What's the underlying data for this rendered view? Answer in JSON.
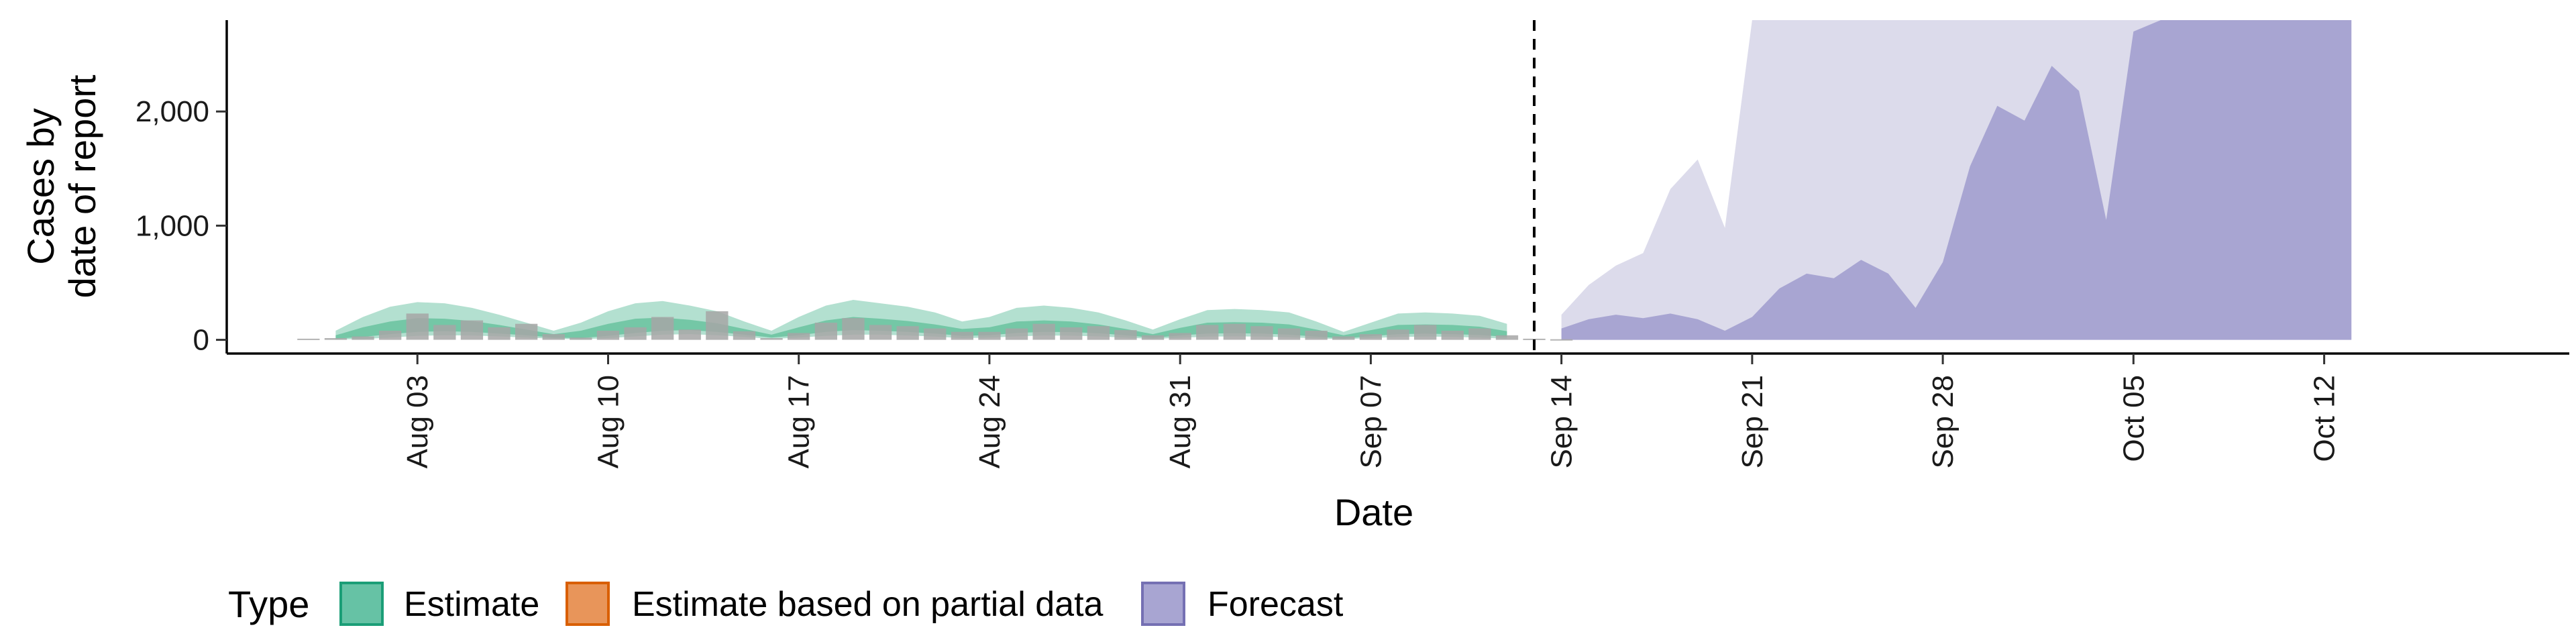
{
  "chart_data": {
    "type": "area",
    "xlabel": "Date",
    "ylabel_lines": [
      "Cases by",
      "date of report"
    ],
    "x_ticks": [
      "Aug 03",
      "Aug 10",
      "Aug 17",
      "Aug 24",
      "Aug 31",
      "Sep 07",
      "Sep 14",
      "Sep 21",
      "Sep 28",
      "Oct 05",
      "Oct 12"
    ],
    "y_ticks": [
      "0",
      "1,000",
      "2,000"
    ],
    "ylim": [
      -120,
      2800
    ],
    "x_range": [
      "2020-07-27",
      "2020-10-21"
    ],
    "forecast_start": "2020-09-13",
    "legend": {
      "title": "Type",
      "position": "bottom",
      "items": [
        {
          "label": "Estimate",
          "fill": "#66c2a5",
          "stroke": "#1b9e77"
        },
        {
          "label": "Estimate based on partial data",
          "fill": "#e8955a",
          "stroke": "#d95f02"
        },
        {
          "label": "Forecast",
          "fill": "#a8a5d2",
          "stroke": "#7570b3"
        }
      ]
    },
    "colors": {
      "estimate_outer": "#b3e0d0",
      "estimate_inner": "#74c7a6",
      "forecast_outer": "#dcdbeb",
      "forecast_inner": "#a8a5d2",
      "observed_bars": "#a6a6a6"
    },
    "estimate": {
      "dates": [
        "2020-07-31",
        "2020-08-01",
        "2020-08-02",
        "2020-08-03",
        "2020-08-04",
        "2020-08-05",
        "2020-08-06",
        "2020-08-07",
        "2020-08-08",
        "2020-08-09",
        "2020-08-10",
        "2020-08-11",
        "2020-08-12",
        "2020-08-13",
        "2020-08-14",
        "2020-08-15",
        "2020-08-16",
        "2020-08-17",
        "2020-08-18",
        "2020-08-19",
        "2020-08-20",
        "2020-08-21",
        "2020-08-22",
        "2020-08-23",
        "2020-08-24",
        "2020-08-25",
        "2020-08-26",
        "2020-08-27",
        "2020-08-28",
        "2020-08-29",
        "2020-08-30",
        "2020-08-31",
        "2020-09-01",
        "2020-09-02",
        "2020-09-03",
        "2020-09-04",
        "2020-09-05",
        "2020-09-06",
        "2020-09-07",
        "2020-09-08",
        "2020-09-09",
        "2020-09-10",
        "2020-09-11",
        "2020-09-12"
      ],
      "lower_outer": [
        2,
        8,
        20,
        35,
        40,
        38,
        30,
        20,
        10,
        5,
        15,
        30,
        45,
        50,
        40,
        25,
        8,
        20,
        35,
        45,
        45,
        38,
        28,
        15,
        20,
        30,
        38,
        36,
        30,
        20,
        8,
        18,
        28,
        30,
        28,
        22,
        12,
        5,
        15,
        25,
        28,
        26,
        20,
        10
      ],
      "upper_outer": [
        80,
        200,
        290,
        330,
        320,
        280,
        220,
        150,
        80,
        150,
        250,
        320,
        340,
        300,
        250,
        160,
        80,
        200,
        300,
        350,
        320,
        290,
        240,
        160,
        200,
        280,
        300,
        280,
        240,
        170,
        90,
        180,
        260,
        270,
        260,
        240,
        160,
        70,
        150,
        230,
        240,
        230,
        210,
        140
      ],
      "lower_inner": [
        10,
        25,
        50,
        70,
        75,
        70,
        55,
        40,
        20,
        15,
        35,
        60,
        80,
        85,
        70,
        45,
        20,
        40,
        70,
        85,
        80,
        70,
        55,
        35,
        40,
        60,
        70,
        68,
        58,
        40,
        18,
        38,
        55,
        58,
        55,
        45,
        28,
        12,
        32,
        50,
        54,
        50,
        42,
        25
      ],
      "upper_inner": [
        40,
        110,
        160,
        190,
        185,
        165,
        130,
        90,
        50,
        80,
        140,
        185,
        195,
        175,
        145,
        95,
        45,
        110,
        170,
        200,
        185,
        165,
        135,
        95,
        110,
        160,
        170,
        160,
        135,
        95,
        50,
        105,
        150,
        155,
        150,
        135,
        90,
        40,
        85,
        130,
        135,
        130,
        115,
        75
      ]
    },
    "observed": {
      "dates": [
        "2020-07-30",
        "2020-07-31",
        "2020-08-01",
        "2020-08-02",
        "2020-08-03",
        "2020-08-04",
        "2020-08-05",
        "2020-08-06",
        "2020-08-07",
        "2020-08-08",
        "2020-08-09",
        "2020-08-10",
        "2020-08-11",
        "2020-08-12",
        "2020-08-13",
        "2020-08-14",
        "2020-08-15",
        "2020-08-16",
        "2020-08-17",
        "2020-08-18",
        "2020-08-19",
        "2020-08-20",
        "2020-08-21",
        "2020-08-22",
        "2020-08-23",
        "2020-08-24",
        "2020-08-25",
        "2020-08-26",
        "2020-08-27",
        "2020-08-28",
        "2020-08-29",
        "2020-08-30",
        "2020-08-31",
        "2020-09-01",
        "2020-09-02",
        "2020-09-03",
        "2020-09-04",
        "2020-09-05",
        "2020-09-06",
        "2020-09-07",
        "2020-09-08",
        "2020-09-09",
        "2020-09-10",
        "2020-09-11",
        "2020-09-12",
        "2020-09-13",
        "2020-09-14"
      ],
      "values": [
        10,
        15,
        30,
        80,
        230,
        130,
        170,
        110,
        140,
        50,
        20,
        80,
        110,
        200,
        90,
        250,
        75,
        15,
        60,
        150,
        190,
        130,
        120,
        100,
        70,
        70,
        100,
        140,
        110,
        120,
        85,
        40,
        60,
        130,
        140,
        120,
        100,
        80,
        30,
        50,
        90,
        130,
        80,
        100,
        40,
        10,
        5
      ]
    },
    "forecast": {
      "dates": [
        "2020-09-14",
        "2020-09-15",
        "2020-09-16",
        "2020-09-17",
        "2020-09-18",
        "2020-09-19",
        "2020-09-20",
        "2020-09-21",
        "2020-09-22",
        "2020-09-23",
        "2020-09-24",
        "2020-09-25",
        "2020-09-26",
        "2020-09-27",
        "2020-09-28",
        "2020-09-29",
        "2020-09-30",
        "2020-10-01",
        "2020-10-02",
        "2020-10-03",
        "2020-10-04",
        "2020-10-05",
        "2020-10-06",
        "2020-10-07",
        "2020-10-08",
        "2020-10-09",
        "2020-10-10",
        "2020-10-11",
        "2020-10-12",
        "2020-10-13"
      ],
      "lower_outer": [
        20,
        30,
        40,
        35,
        20,
        10,
        5,
        5,
        5,
        5,
        5,
        5,
        5,
        5,
        5,
        5,
        5,
        5,
        5,
        5,
        5,
        5,
        5,
        5,
        5,
        5,
        5,
        5,
        5,
        5
      ],
      "upper_outer": [
        220,
        480,
        650,
        760,
        1320,
        1580,
        980,
        2800,
        2800,
        2800,
        2800,
        2800,
        2800,
        2800,
        2800,
        2800,
        2800,
        2800,
        2800,
        2800,
        2800,
        2800,
        2800,
        2800,
        2800,
        2800,
        2800,
        2800,
        2800,
        2800
      ],
      "lower_inner": [
        0,
        0,
        0,
        0,
        0,
        0,
        0,
        0,
        0,
        0,
        0,
        0,
        0,
        0,
        0,
        0,
        0,
        0,
        0,
        0,
        0,
        0,
        0,
        0,
        0,
        0,
        0,
        0,
        0,
        0
      ],
      "upper_inner": [
        100,
        180,
        220,
        190,
        230,
        180,
        80,
        200,
        450,
        580,
        540,
        700,
        580,
        280,
        680,
        1520,
        2050,
        1920,
        2400,
        2180,
        1050,
        2700,
        2800,
        2800,
        2800,
        2800,
        2800,
        2800,
        2800,
        2800
      ]
    }
  }
}
